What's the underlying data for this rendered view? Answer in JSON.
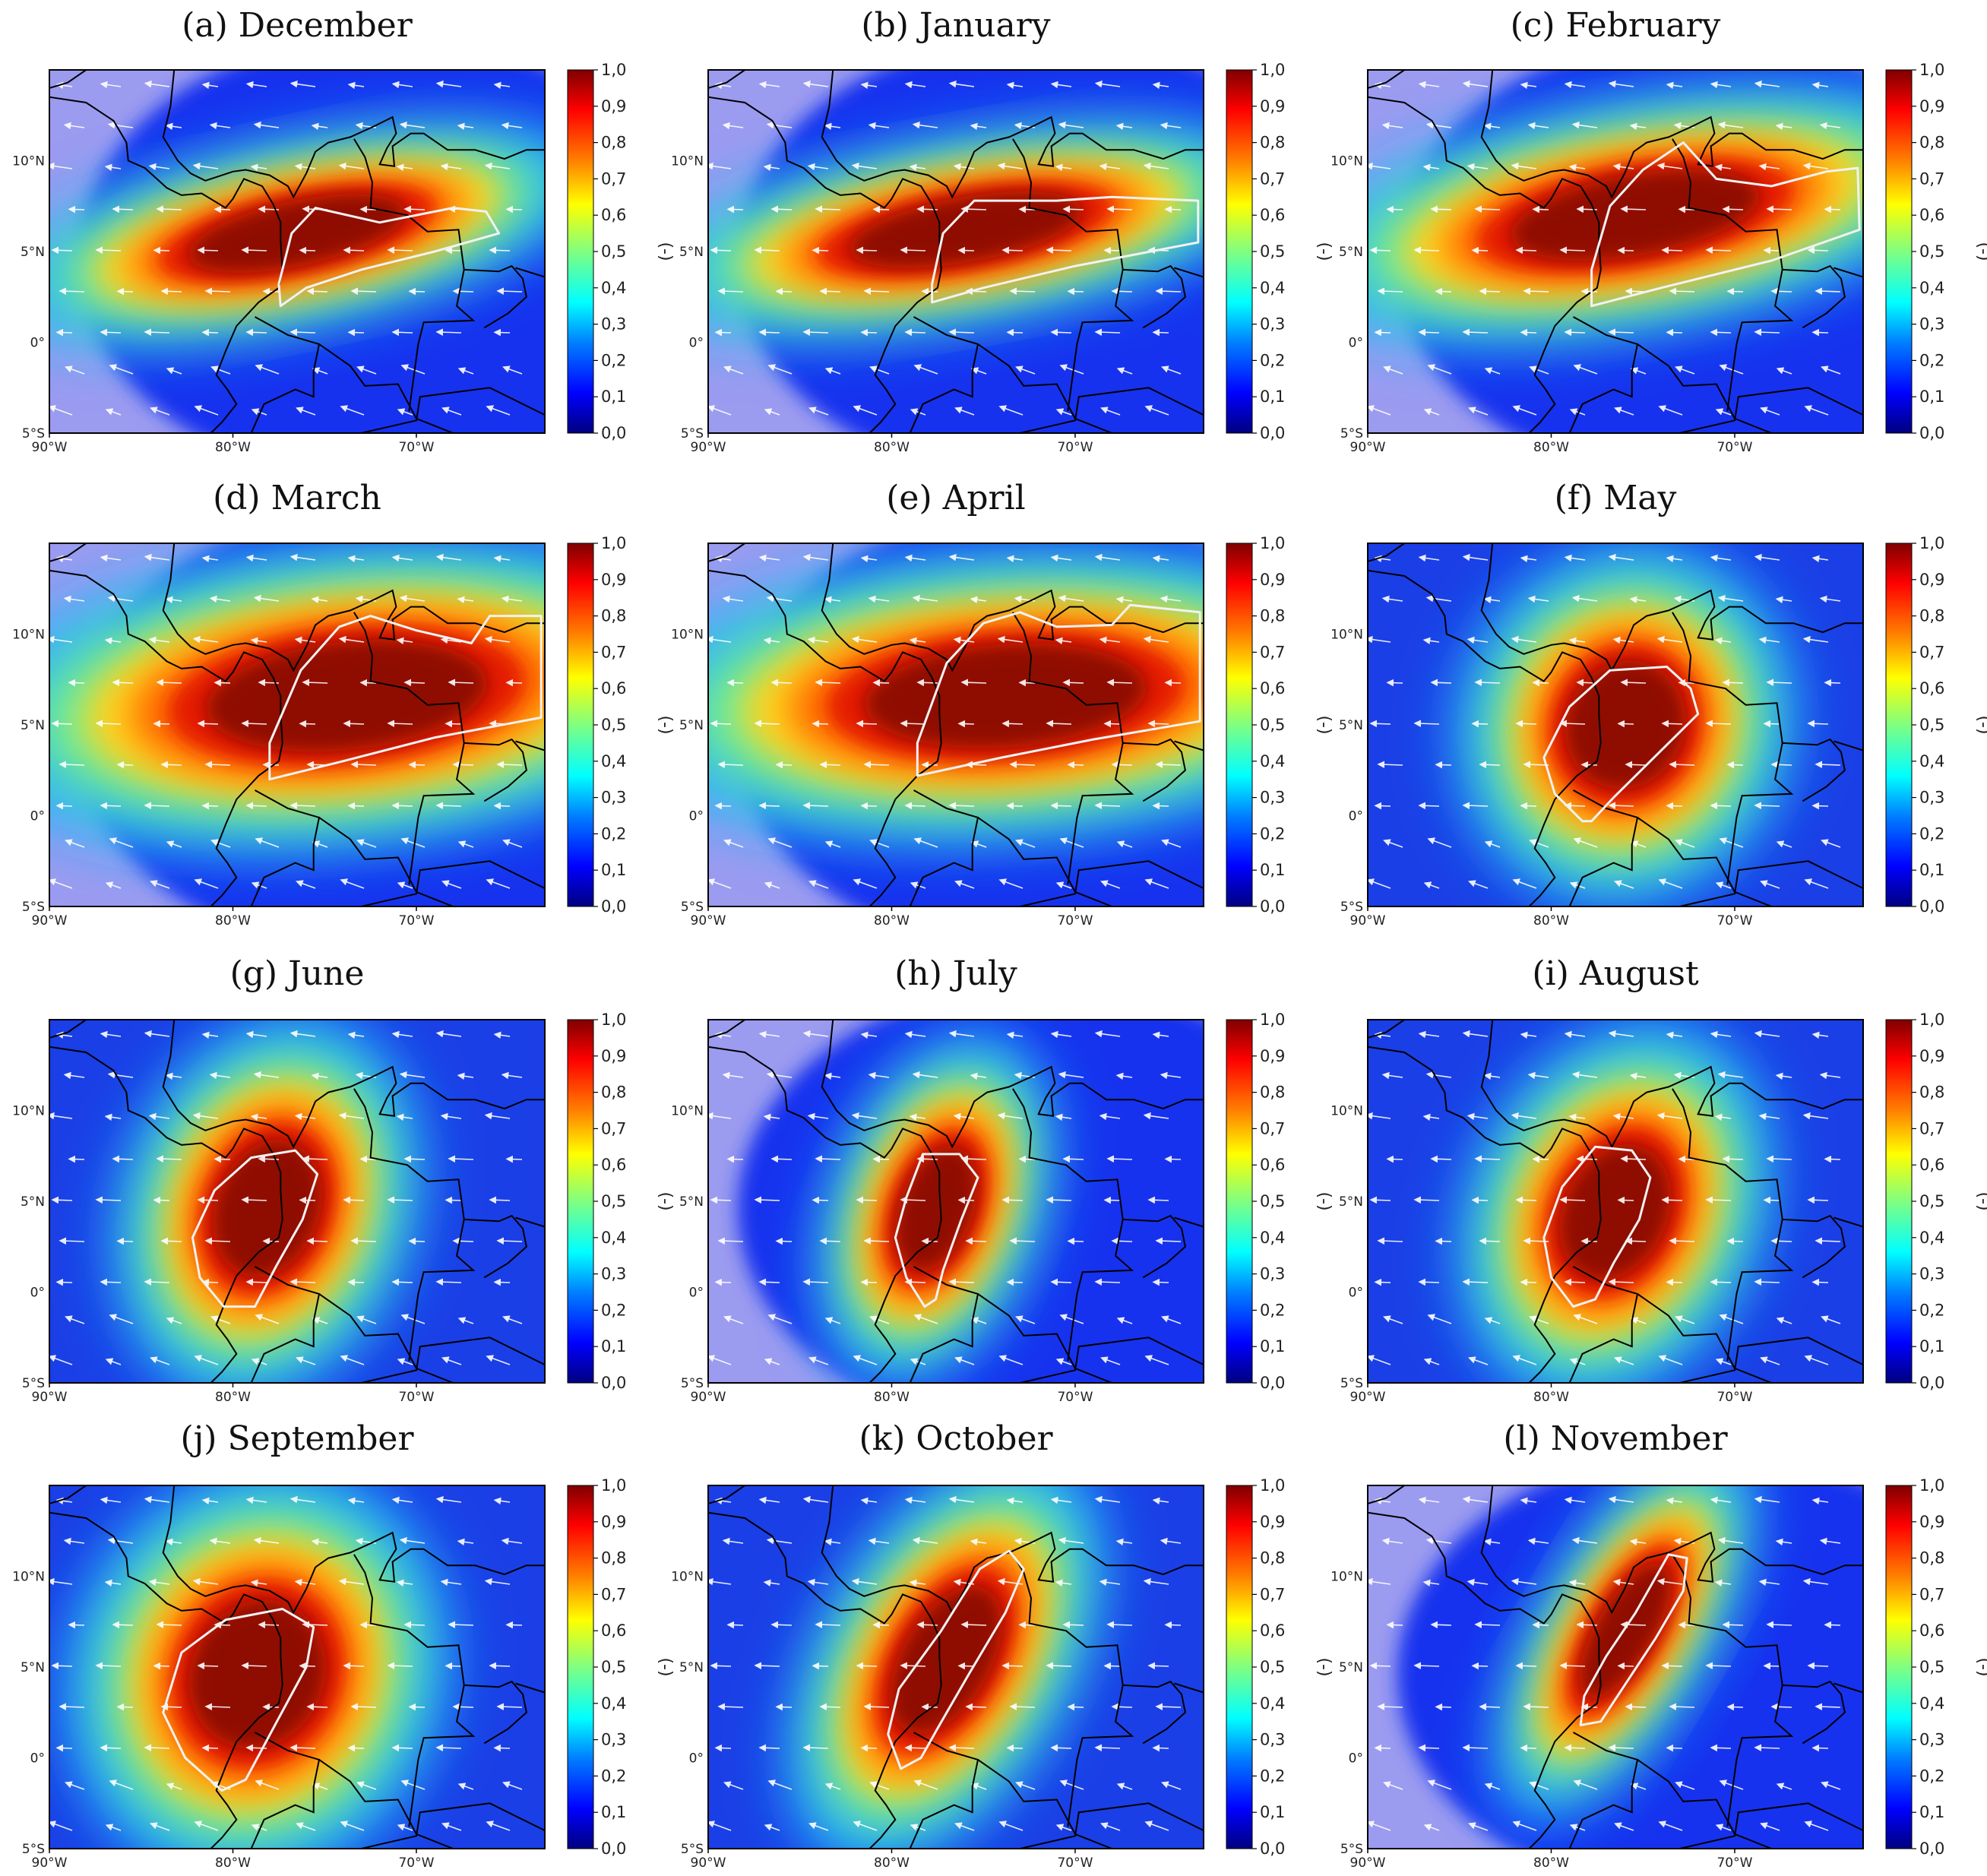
{
  "figure": {
    "colormap": "jet",
    "color_stops": [
      "#00007f",
      "#0000ff",
      "#0080ff",
      "#00ffff",
      "#80ff80",
      "#ffff00",
      "#ff8000",
      "#ff0000",
      "#7f0000"
    ],
    "masked_color": "#9b9bf0",
    "contour_color": "#f2f2f2",
    "arrow_color": "#ffffff",
    "coast_color": "#000000"
  },
  "axis": {
    "lon_ticks": [
      "90°W",
      "80°W",
      "70°W"
    ],
    "lat_ticks": [
      "10°N",
      "5°N",
      "0°",
      "5°S"
    ]
  },
  "colorbar": {
    "ticks": [
      "1,0",
      "0,9",
      "0,8",
      "0,7",
      "0,6",
      "0,5",
      "0,4",
      "0,3",
      "0,2",
      "0,1",
      "0,0"
    ],
    "label": "(-)"
  },
  "panels": [
    {
      "title": "(a) December",
      "masked": true
    },
    {
      "title": "(b) January",
      "masked": true
    },
    {
      "title": "(c) February",
      "masked": true
    },
    {
      "title": "(d) March",
      "masked": true
    },
    {
      "title": "(e) April",
      "masked": true
    },
    {
      "title": "(f) May",
      "masked": false
    },
    {
      "title": "(g) June",
      "masked": false
    },
    {
      "title": "(h) July",
      "masked": true
    },
    {
      "title": "(i) August",
      "masked": false
    },
    {
      "title": "(j) September",
      "masked": false
    },
    {
      "title": "(k) October",
      "masked": false
    },
    {
      "title": "(l) November",
      "masked": true
    }
  ]
}
